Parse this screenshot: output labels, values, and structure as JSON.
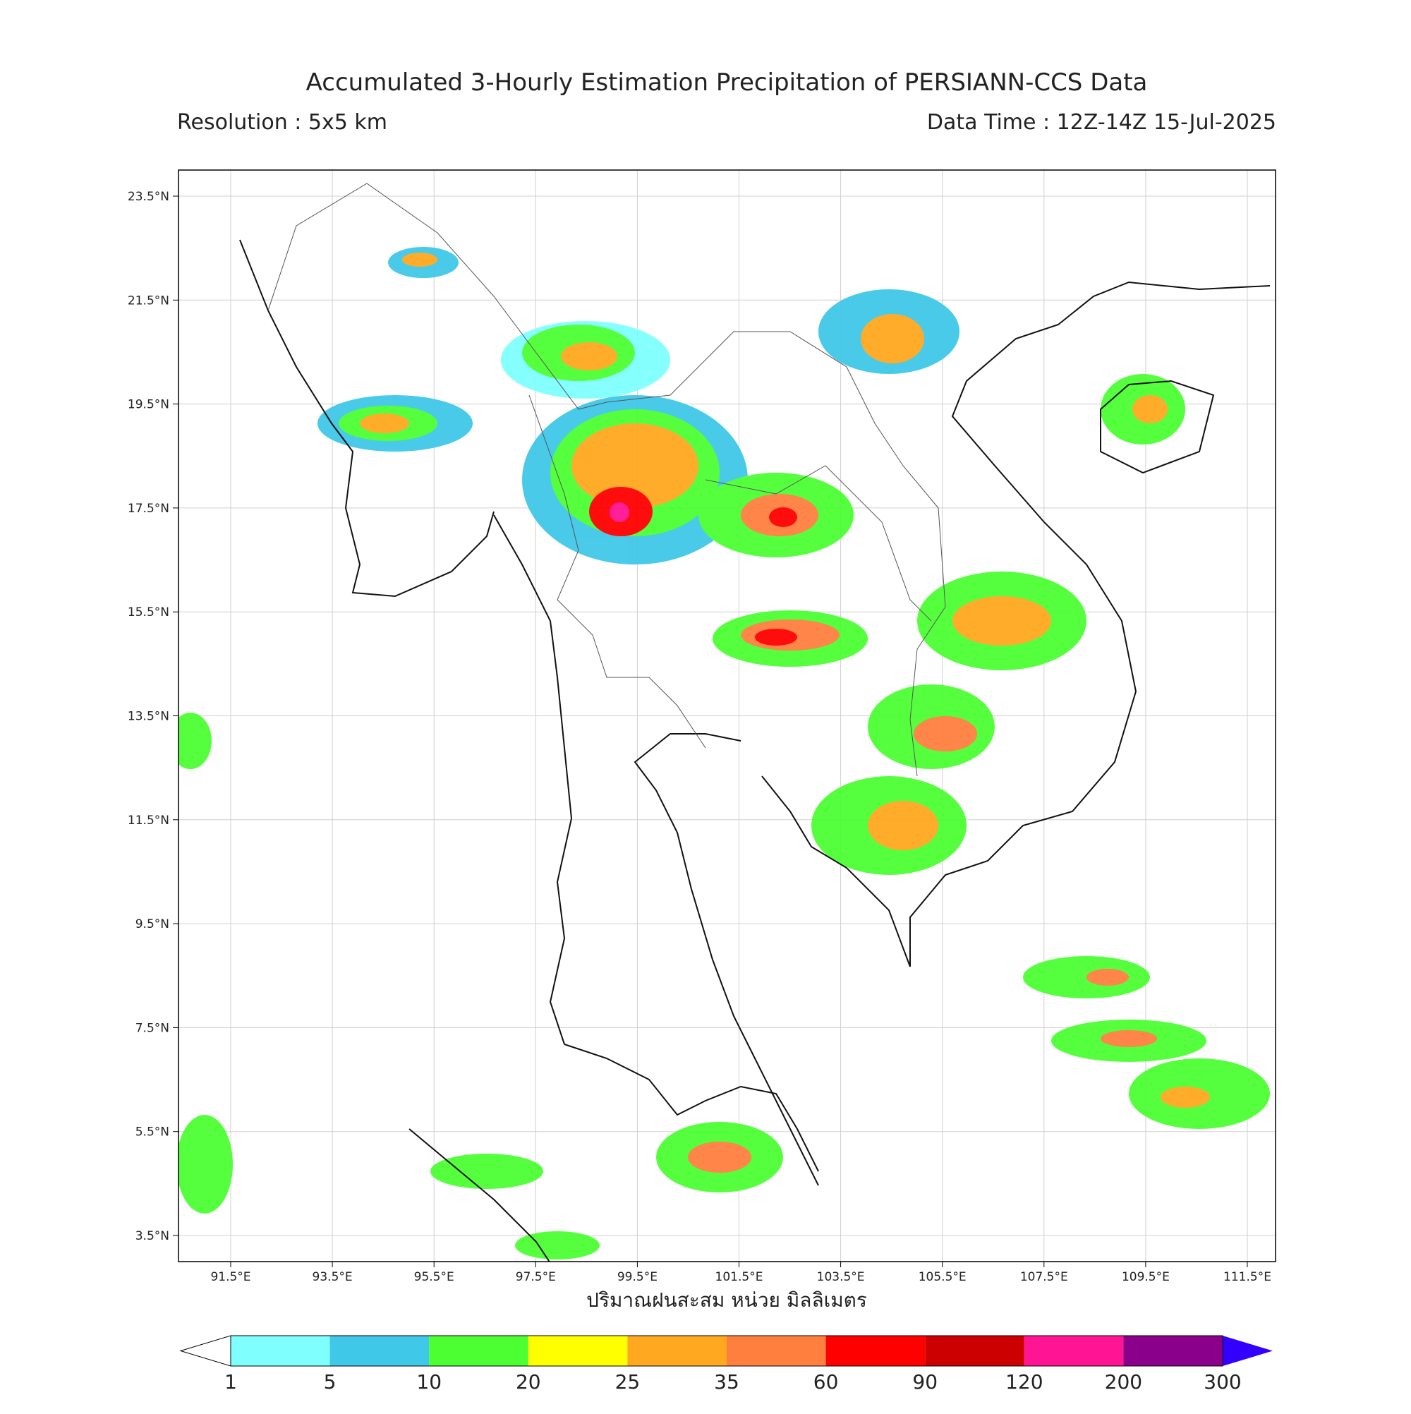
{
  "header": {
    "title": "Accumulated 3-Hourly Estimation Precipitation of PERSIANN-CCS Data",
    "resolution": "Resolution : 5x5 km",
    "data_time": "Data Time : 12Z-14Z 15-Jul-2025"
  },
  "map": {
    "lat_labels": [
      "23.5°N",
      "21.5°N",
      "19.5°N",
      "17.5°N",
      "15.5°N",
      "13.5°N",
      "11.5°N",
      "9.5°N",
      "7.5°N",
      "5.5°N",
      "3.5°N"
    ],
    "lon_labels": [
      "91.5°E",
      "93.5°E",
      "95.5°E",
      "97.5°E",
      "99.5°E",
      "101.5°E",
      "103.5°E",
      "105.5°E",
      "107.5°E",
      "109.5°E",
      "111.5°E"
    ],
    "x_label": "ปริมาณฝนสะสม หน่วย มิลลิเมตร"
  },
  "colorbar": {
    "levels": [
      "1",
      "5",
      "10",
      "20",
      "25",
      "35",
      "60",
      "90",
      "120",
      "200",
      "300"
    ],
    "colors": [
      "#80ffff",
      "#40c8e8",
      "#4cff33",
      "#ffff00",
      "#ffa820",
      "#ff7f3f",
      "#ff0000",
      "#cc0000",
      "#ff1493",
      "#8b008b"
    ],
    "under_color": "#ffffff",
    "over_color": "#3300ff"
  }
}
